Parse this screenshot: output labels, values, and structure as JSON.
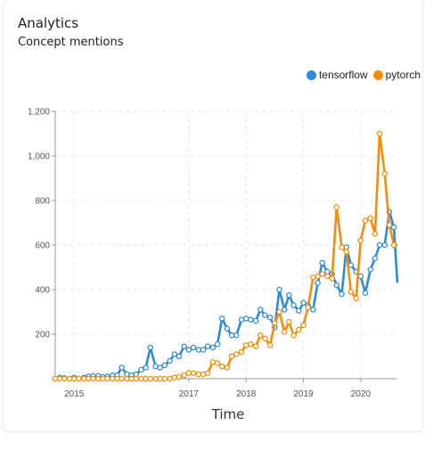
{
  "card": {
    "title": "Analytics",
    "subtitle": "Concept mentions"
  },
  "colors": {
    "tensorflow": "#2f8bd8",
    "pytorch": "#f28e0c",
    "grid": "#e8e8e8",
    "axis": "#999999"
  },
  "chart_data": {
    "type": "line",
    "xlabel": "Time",
    "ylabel": "",
    "ylim": [
      0,
      1200
    ],
    "yticks": [
      200,
      400,
      600,
      800,
      1000,
      1200
    ],
    "ytick_labels": [
      "200",
      "400",
      "600",
      "800",
      "1,000",
      "1,200"
    ],
    "xticks": [
      2015,
      2017,
      2018,
      2019,
      2020
    ],
    "xtick_labels": [
      "2015",
      "2017",
      "2018",
      "2019",
      "2020"
    ],
    "xlim": [
      2014.67,
      2020.64
    ],
    "grid": true,
    "legend_position": "top-right",
    "series": [
      {
        "name": "tensorflow",
        "color": "#2f8bd8",
        "x": [
          2014.67,
          2014.75,
          2014.83,
          2014.92,
          2015.0,
          2015.08,
          2015.17,
          2015.25,
          2015.33,
          2015.42,
          2015.5,
          2015.58,
          2015.67,
          2015.75,
          2015.83,
          2015.92,
          2016.0,
          2016.08,
          2016.17,
          2016.25,
          2016.33,
          2016.42,
          2016.5,
          2016.58,
          2016.67,
          2016.75,
          2016.83,
          2016.92,
          2017.0,
          2017.08,
          2017.17,
          2017.25,
          2017.33,
          2017.42,
          2017.5,
          2017.58,
          2017.67,
          2017.75,
          2017.83,
          2017.92,
          2018.0,
          2018.08,
          2018.17,
          2018.25,
          2018.33,
          2018.42,
          2018.5,
          2018.58,
          2018.67,
          2018.75,
          2018.83,
          2018.92,
          2019.0,
          2019.08,
          2019.17,
          2019.25,
          2019.33,
          2019.42,
          2019.5,
          2019.58,
          2019.67,
          2019.75,
          2019.83,
          2019.92,
          2020.0,
          2020.08,
          2020.17,
          2020.25,
          2020.33,
          2020.42,
          2020.5,
          2020.58,
          2020.64
        ],
        "values": [
          0,
          5,
          3,
          0,
          5,
          0,
          5,
          10,
          12,
          12,
          8,
          10,
          15,
          15,
          50,
          20,
          15,
          20,
          40,
          50,
          140,
          55,
          50,
          60,
          80,
          110,
          100,
          145,
          130,
          140,
          130,
          130,
          145,
          140,
          155,
          270,
          225,
          195,
          195,
          265,
          270,
          265,
          260,
          310,
          285,
          275,
          230,
          400,
          310,
          375,
          330,
          305,
          340,
          330,
          310,
          430,
          520,
          480,
          470,
          420,
          380,
          590,
          510,
          480,
          460,
          385,
          490,
          540,
          600,
          600,
          750,
          680,
          430
        ]
      },
      {
        "name": "pytorch",
        "color": "#f28e0c",
        "x": [
          2014.67,
          2014.75,
          2014.83,
          2014.92,
          2015.0,
          2015.08,
          2015.17,
          2015.25,
          2015.33,
          2015.42,
          2015.5,
          2015.58,
          2015.67,
          2015.75,
          2015.83,
          2015.92,
          2016.0,
          2016.08,
          2016.17,
          2016.25,
          2016.33,
          2016.42,
          2016.5,
          2016.58,
          2016.67,
          2016.75,
          2016.83,
          2016.92,
          2017.0,
          2017.08,
          2017.17,
          2017.25,
          2017.33,
          2017.42,
          2017.5,
          2017.58,
          2017.67,
          2017.75,
          2017.83,
          2017.92,
          2018.0,
          2018.08,
          2018.17,
          2018.25,
          2018.33,
          2018.42,
          2018.5,
          2018.58,
          2018.67,
          2018.75,
          2018.83,
          2018.92,
          2019.0,
          2019.08,
          2019.17,
          2019.25,
          2019.33,
          2019.42,
          2019.5,
          2019.58,
          2019.67,
          2019.75,
          2019.83,
          2019.92,
          2020.0,
          2020.08,
          2020.17,
          2020.25,
          2020.33,
          2020.42,
          2020.5,
          2020.58,
          2020.64
        ],
        "values": [
          0,
          0,
          0,
          0,
          0,
          0,
          0,
          0,
          0,
          0,
          0,
          0,
          0,
          0,
          0,
          0,
          0,
          0,
          0,
          0,
          0,
          0,
          0,
          0,
          0,
          5,
          8,
          15,
          25,
          25,
          20,
          20,
          25,
          75,
          70,
          55,
          50,
          100,
          110,
          120,
          150,
          155,
          145,
          195,
          180,
          150,
          250,
          300,
          210,
          255,
          195,
          220,
          240,
          320,
          455,
          460,
          470,
          460,
          450,
          770,
          590,
          570,
          390,
          360,
          620,
          710,
          720,
          650,
          1100,
          920,
          690,
          600,
          600
        ]
      }
    ]
  }
}
